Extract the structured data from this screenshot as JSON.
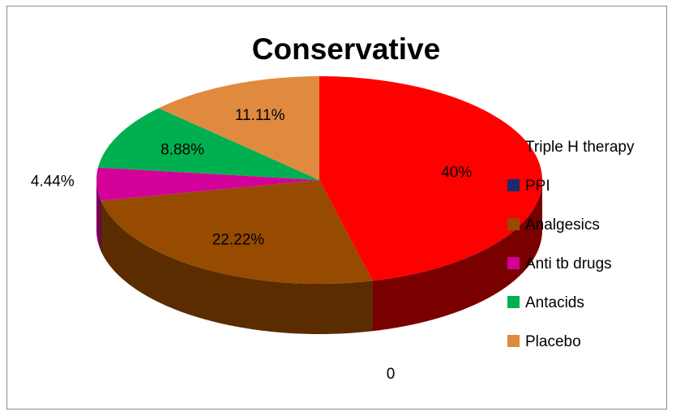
{
  "chart_data": {
    "type": "pie",
    "style": "3d",
    "title": "Conservative",
    "legend_position": "right",
    "slices": [
      {
        "name": "Triple H therapy",
        "value": 40,
        "label": "40%",
        "color": "#ff0000",
        "side_color": "#7a0000"
      },
      {
        "name": "PPI",
        "value": 0,
        "label": "0",
        "color": "#1f2a6b",
        "side_color": "#0f1535"
      },
      {
        "name": "Analgesics",
        "value": 22.22,
        "label": "22.22%",
        "color": "#964b00",
        "side_color": "#5a2c00"
      },
      {
        "name": "Anti tb drugs",
        "value": 4.44,
        "label": "4.44%",
        "color": "#d4009a",
        "side_color": "#7a0058"
      },
      {
        "name": "Antacids",
        "value": 8.88,
        "label": "8.88%",
        "color": "#00b050",
        "side_color": "#006a30"
      },
      {
        "name": "Placebo",
        "value": 11.11,
        "label": "11.11%",
        "color": "#e08a40",
        "side_color": "#8a5020"
      }
    ]
  }
}
